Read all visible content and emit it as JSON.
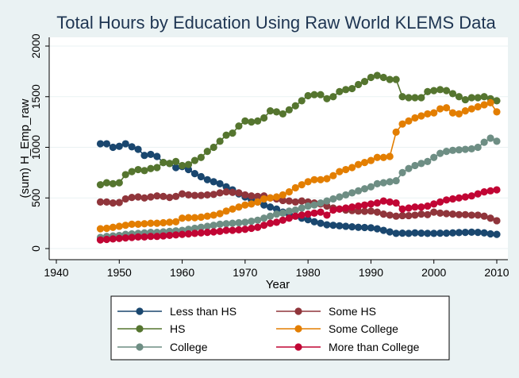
{
  "chart_data": {
    "type": "line",
    "title": "Total Hours by Education Using Raw World KLEMS Data",
    "xlabel": "Year",
    "ylabel": "(sum) H_Emp_raw",
    "xlim": [
      1940,
      2010
    ],
    "ylim": [
      0,
      2000
    ],
    "xticks": [
      1940,
      1950,
      1960,
      1970,
      1980,
      1990,
      2000,
      2010
    ],
    "yticks": [
      0,
      500,
      1000,
      1500,
      2000
    ],
    "grid": "horizontal",
    "legend_position": "bottom",
    "x": [
      1947,
      1948,
      1949,
      1950,
      1951,
      1952,
      1953,
      1954,
      1955,
      1956,
      1957,
      1958,
      1959,
      1960,
      1961,
      1962,
      1963,
      1964,
      1965,
      1966,
      1967,
      1968,
      1969,
      1970,
      1971,
      1972,
      1973,
      1974,
      1975,
      1976,
      1977,
      1978,
      1979,
      1980,
      1981,
      1982,
      1983,
      1984,
      1985,
      1986,
      1987,
      1988,
      1989,
      1990,
      1991,
      1992,
      1993,
      1994,
      1995,
      1996,
      1997,
      1998,
      1999,
      2000,
      2001,
      2002,
      2003,
      2004,
      2005,
      2006,
      2007,
      2008,
      2009,
      2010
    ],
    "series": [
      {
        "name": "Less than HS",
        "color": "#1a476f",
        "values": [
          1035,
          1035,
          1000,
          1010,
          1035,
          1005,
          980,
          920,
          930,
          910,
          850,
          840,
          800,
          810,
          780,
          740,
          710,
          680,
          660,
          640,
          610,
          580,
          540,
          510,
          480,
          460,
          430,
          410,
          390,
          360,
          340,
          320,
          300,
          285,
          265,
          250,
          235,
          230,
          225,
          220,
          215,
          210,
          208,
          205,
          195,
          180,
          165,
          150,
          152,
          150,
          155,
          152,
          150,
          150,
          152,
          152,
          155,
          158,
          160,
          162,
          160,
          155,
          145,
          140
        ]
      },
      {
        "name": "Some HS",
        "color": "#90353b",
        "values": [
          460,
          460,
          450,
          455,
          490,
          505,
          510,
          500,
          510,
          520,
          515,
          505,
          515,
          540,
          530,
          525,
          525,
          530,
          535,
          550,
          560,
          555,
          550,
          530,
          520,
          515,
          520,
          500,
          490,
          475,
          470,
          460,
          470,
          460,
          450,
          440,
          420,
          400,
          390,
          380,
          375,
          370,
          368,
          370,
          360,
          340,
          330,
          320,
          325,
          325,
          330,
          340,
          335,
          360,
          350,
          345,
          340,
          335,
          335,
          330,
          330,
          320,
          300,
          275
        ]
      },
      {
        "name": "HS",
        "color": "#55752f",
        "values": [
          630,
          650,
          640,
          650,
          730,
          760,
          780,
          770,
          790,
          800,
          850,
          840,
          860,
          820,
          830,
          870,
          900,
          960,
          1000,
          1060,
          1120,
          1140,
          1210,
          1260,
          1250,
          1260,
          1290,
          1360,
          1350,
          1330,
          1370,
          1410,
          1460,
          1510,
          1520,
          1520,
          1480,
          1500,
          1550,
          1570,
          1580,
          1620,
          1650,
          1690,
          1710,
          1690,
          1670,
          1670,
          1500,
          1490,
          1490,
          1490,
          1550,
          1560,
          1570,
          1560,
          1530,
          1500,
          1470,
          1490,
          1490,
          1500,
          1480,
          1460
        ]
      },
      {
        "name": "Some College",
        "color": "#e37e00",
        "values": [
          195,
          200,
          210,
          220,
          230,
          240,
          240,
          245,
          250,
          250,
          255,
          260,
          265,
          300,
          305,
          305,
          310,
          320,
          330,
          345,
          370,
          390,
          410,
          430,
          440,
          460,
          490,
          500,
          510,
          530,
          560,
          600,
          630,
          660,
          680,
          680,
          690,
          720,
          760,
          780,
          800,
          830,
          850,
          870,
          900,
          900,
          910,
          1150,
          1230,
          1260,
          1290,
          1310,
          1330,
          1340,
          1380,
          1390,
          1340,
          1330,
          1360,
          1380,
          1400,
          1420,
          1440,
          1350
        ]
      },
      {
        "name": "College",
        "color": "#6e8e84",
        "values": [
          110,
          120,
          125,
          130,
          140,
          145,
          150,
          155,
          160,
          160,
          165,
          170,
          175,
          180,
          190,
          200,
          210,
          220,
          230,
          240,
          245,
          250,
          255,
          260,
          270,
          280,
          300,
          320,
          340,
          350,
          370,
          380,
          400,
          420,
          430,
          450,
          470,
          490,
          510,
          530,
          550,
          570,
          590,
          610,
          640,
          650,
          660,
          670,
          750,
          790,
          820,
          840,
          860,
          900,
          940,
          960,
          970,
          975,
          980,
          985,
          1000,
          1050,
          1090,
          1060
        ]
      },
      {
        "name": "More than College",
        "color": "#c10534",
        "values": [
          85,
          90,
          95,
          100,
          105,
          110,
          115,
          115,
          120,
          120,
          125,
          130,
          135,
          140,
          145,
          150,
          155,
          160,
          165,
          170,
          180,
          180,
          185,
          190,
          200,
          210,
          230,
          250,
          260,
          280,
          300,
          320,
          330,
          340,
          350,
          360,
          330,
          380,
          390,
          400,
          410,
          420,
          430,
          440,
          450,
          470,
          460,
          450,
          390,
          400,
          410,
          410,
          420,
          440,
          460,
          480,
          490,
          500,
          510,
          520,
          540,
          560,
          570,
          580
        ]
      }
    ]
  }
}
